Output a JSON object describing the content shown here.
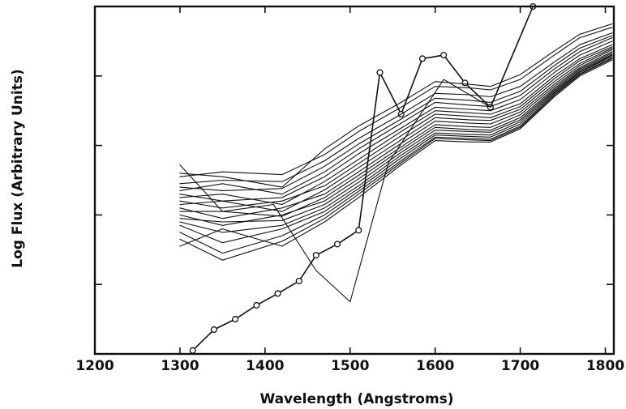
{
  "chart_data": {
    "type": "line",
    "title": "",
    "xlabel": "Wavelength (Angstroms)",
    "ylabel": "Log Flux (Arbitrary Units)",
    "xlim": [
      1200,
      1810
    ],
    "ylim": [
      0,
      5
    ],
    "x_ticks": [
      1200,
      1300,
      1400,
      1500,
      1600,
      1700,
      1800
    ],
    "y_ticks": [
      1,
      2,
      3,
      4
    ],
    "y_tick_labels_shown": false,
    "grid": false,
    "legend": "none",
    "colors": {
      "line": "#111111",
      "background": "#ffffff"
    },
    "series": [
      {
        "markers": "circle",
        "x": [
          1315,
          1340,
          1365,
          1390,
          1415,
          1440,
          1460,
          1485,
          1510,
          1535,
          1560,
          1585,
          1610,
          1635,
          1665,
          1715
        ],
        "y": [
          0.05,
          0.35,
          0.5,
          0.7,
          0.87,
          1.05,
          1.42,
          1.58,
          1.78,
          4.05,
          3.45,
          4.25,
          4.3,
          3.9,
          3.55,
          5.0
        ]
      },
      {
        "markers": "none",
        "x": [
          1300,
          1350,
          1410,
          1460,
          1500,
          1545,
          1610,
          1665,
          1715
        ],
        "y": [
          2.72,
          2.05,
          2.15,
          1.2,
          0.75,
          2.75,
          3.95,
          3.55,
          5.0
        ]
      },
      {
        "markers": "none",
        "x": [
          1300,
          1350,
          1420,
          1470,
          1510,
          1560,
          1600,
          1640,
          1665,
          1700,
          1740,
          1770,
          1808
        ],
        "y": [
          2.55,
          2.62,
          2.58,
          2.87,
          3.2,
          3.55,
          3.85,
          3.83,
          3.8,
          3.95,
          4.3,
          4.55,
          4.7
        ]
      },
      {
        "markers": "none",
        "x": [
          1300,
          1350,
          1420,
          1470,
          1510,
          1560,
          1600,
          1640,
          1665,
          1700,
          1740,
          1770,
          1808
        ],
        "y": [
          2.45,
          2.5,
          2.48,
          2.78,
          3.1,
          3.45,
          3.75,
          3.73,
          3.7,
          3.85,
          4.2,
          4.45,
          4.62
        ]
      },
      {
        "markers": "none",
        "x": [
          1300,
          1350,
          1420,
          1470,
          1510,
          1560,
          1600,
          1640,
          1665,
          1700,
          1740,
          1770,
          1808
        ],
        "y": [
          2.4,
          2.35,
          2.38,
          2.7,
          3.02,
          3.38,
          3.68,
          3.65,
          3.62,
          3.78,
          4.15,
          4.4,
          4.58
        ]
      },
      {
        "markers": "none",
        "x": [
          1300,
          1350,
          1420,
          1470,
          1510,
          1560,
          1600,
          1640,
          1665,
          1700,
          1740,
          1770,
          1808
        ],
        "y": [
          2.35,
          2.45,
          2.3,
          2.62,
          2.95,
          3.32,
          3.62,
          3.58,
          3.56,
          3.72,
          4.1,
          4.35,
          4.55
        ]
      },
      {
        "markers": "none",
        "x": [
          1300,
          1350,
          1420,
          1470,
          1510,
          1560,
          1600,
          1640,
          1665,
          1700,
          1740,
          1770,
          1808
        ],
        "y": [
          2.3,
          2.2,
          2.25,
          2.55,
          2.88,
          3.25,
          3.55,
          3.52,
          3.5,
          3.66,
          4.05,
          4.3,
          4.5
        ]
      },
      {
        "markers": "none",
        "x": [
          1300,
          1350,
          1420,
          1470,
          1510,
          1560,
          1600,
          1640,
          1665,
          1700,
          1740,
          1770,
          1808
        ],
        "y": [
          2.25,
          2.3,
          2.15,
          2.48,
          2.8,
          3.2,
          3.5,
          3.47,
          3.45,
          3.6,
          4.0,
          4.25,
          4.45
        ]
      },
      {
        "markers": "none",
        "x": [
          1300,
          1350,
          1420,
          1470,
          1510,
          1560,
          1600,
          1640,
          1665,
          1700,
          1740,
          1770,
          1808
        ],
        "y": [
          2.2,
          2.1,
          2.2,
          2.42,
          2.74,
          3.14,
          3.45,
          3.42,
          3.4,
          3.56,
          3.96,
          4.22,
          4.42
        ]
      },
      {
        "markers": "none",
        "x": [
          1300,
          1350,
          1420,
          1470,
          1510,
          1560,
          1600,
          1640,
          1665,
          1700,
          1740,
          1770,
          1808
        ],
        "y": [
          2.15,
          2.2,
          2.05,
          2.36,
          2.68,
          3.08,
          3.4,
          3.37,
          3.36,
          3.52,
          3.92,
          4.18,
          4.4
        ]
      },
      {
        "markers": "none",
        "x": [
          1300,
          1350,
          1420,
          1470,
          1510,
          1560,
          1600,
          1640,
          1665,
          1700,
          1740,
          1770,
          1808
        ],
        "y": [
          2.1,
          1.95,
          2.1,
          2.3,
          2.62,
          3.03,
          3.35,
          3.32,
          3.31,
          3.48,
          3.88,
          4.15,
          4.38
        ]
      },
      {
        "markers": "none",
        "x": [
          1300,
          1350,
          1420,
          1470,
          1510,
          1560,
          1600,
          1640,
          1665,
          1700,
          1740,
          1770,
          1808
        ],
        "y": [
          2.05,
          2.05,
          1.98,
          2.25,
          2.57,
          2.98,
          3.3,
          3.27,
          3.26,
          3.44,
          3.85,
          4.12,
          4.35
        ]
      },
      {
        "markers": "none",
        "x": [
          1300,
          1350,
          1420,
          1470,
          1510,
          1560,
          1600,
          1640,
          1665,
          1700,
          1740,
          1770,
          1808
        ],
        "y": [
          2.0,
          1.85,
          2.0,
          2.2,
          2.52,
          2.94,
          3.26,
          3.23,
          3.22,
          3.4,
          3.82,
          4.1,
          4.33
        ]
      },
      {
        "markers": "none",
        "x": [
          1300,
          1350,
          1420,
          1470,
          1510,
          1560,
          1600,
          1640,
          1665,
          1700,
          1740,
          1770,
          1808
        ],
        "y": [
          1.95,
          1.9,
          1.92,
          2.15,
          2.47,
          2.9,
          3.22,
          3.2,
          3.19,
          3.37,
          3.8,
          4.08,
          4.31
        ]
      },
      {
        "markers": "none",
        "x": [
          1300,
          1350,
          1420,
          1470,
          1510,
          1560,
          1600,
          1640,
          1665,
          1700,
          1740,
          1770,
          1808
        ],
        "y": [
          1.9,
          1.75,
          1.85,
          2.1,
          2.42,
          2.86,
          3.18,
          3.16,
          3.15,
          3.34,
          3.78,
          4.06,
          4.3
        ]
      },
      {
        "markers": "none",
        "x": [
          1300,
          1350,
          1420,
          1470,
          1510,
          1560,
          1600,
          1640,
          1665,
          1700,
          1740,
          1770,
          1808
        ],
        "y": [
          1.85,
          1.6,
          1.8,
          2.05,
          2.38,
          2.82,
          3.15,
          3.13,
          3.12,
          3.31,
          3.76,
          4.05,
          4.28
        ]
      },
      {
        "markers": "none",
        "x": [
          1300,
          1350,
          1420,
          1470,
          1510,
          1560,
          1600,
          1640,
          1665,
          1700,
          1740,
          1770,
          1808
        ],
        "y": [
          1.75,
          1.45,
          1.7,
          2.0,
          2.34,
          2.78,
          3.12,
          3.1,
          3.09,
          3.28,
          3.74,
          4.03,
          4.26
        ]
      },
      {
        "markers": "none",
        "x": [
          1300,
          1350,
          1420,
          1470,
          1510,
          1560,
          1600,
          1640,
          1665,
          1700,
          1740,
          1770,
          1808
        ],
        "y": [
          1.65,
          1.35,
          1.62,
          1.95,
          2.3,
          2.75,
          3.1,
          3.08,
          3.07,
          3.26,
          3.72,
          4.02,
          4.25
        ]
      },
      {
        "markers": "none",
        "x": [
          1300,
          1350,
          1420,
          1470,
          1510,
          1560,
          1600,
          1640,
          1665,
          1700,
          1740,
          1770,
          1808
        ],
        "y": [
          2.6,
          2.55,
          2.4,
          2.95,
          3.28,
          3.62,
          3.92,
          3.88,
          3.85,
          4.02,
          4.36,
          4.6,
          4.75
        ]
      },
      {
        "markers": "none",
        "x": [
          1300,
          1350,
          1420,
          1470,
          1510,
          1560,
          1600,
          1640,
          1665,
          1700,
          1740,
          1770,
          1808
        ],
        "y": [
          1.55,
          1.8,
          1.55,
          1.9,
          2.25,
          2.72,
          3.07,
          3.05,
          3.05,
          3.24,
          3.7,
          4.0,
          4.23
        ]
      }
    ]
  }
}
